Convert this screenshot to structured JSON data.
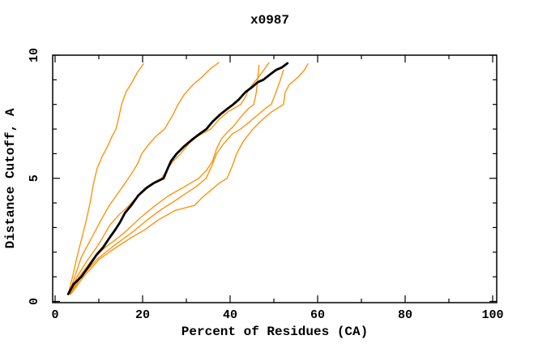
{
  "chart_data": {
    "type": "line",
    "title": "x0987",
    "xlabel": "Percent of Residues (CA)",
    "ylabel": "Distance Cutoff, A",
    "xlim": [
      0,
      100
    ],
    "ylim": [
      0,
      10
    ],
    "x_major_ticks": [
      0,
      20,
      40,
      60,
      80,
      100
    ],
    "x_minor_ticks": [
      10,
      30,
      50,
      70,
      90
    ],
    "y_major_ticks": [
      0,
      5,
      10
    ],
    "y_minor_ticks": [
      1,
      2,
      3,
      4,
      6,
      7,
      8,
      9
    ],
    "grid": false,
    "legend_position": "none",
    "colors": {
      "background": "#ffffff",
      "axis": "#000000",
      "prediction_line": "#ff8c00",
      "reference_line": "#000000"
    },
    "series": [
      {
        "name": "prediction-1",
        "color": "#ff8c00",
        "width": 1.3,
        "points": [
          [
            3.0,
            0.3
          ],
          [
            4.0,
            1.0
          ],
          [
            5.0,
            1.8
          ],
          [
            6.0,
            2.5
          ],
          [
            7.0,
            3.2
          ],
          [
            8.0,
            4.0
          ],
          [
            8.8,
            4.8
          ],
          [
            9.6,
            5.4
          ],
          [
            10.8,
            5.9
          ],
          [
            12.0,
            6.3
          ],
          [
            13.0,
            6.7
          ],
          [
            13.9,
            7.0
          ],
          [
            14.6,
            7.5
          ],
          [
            15.2,
            8.0
          ],
          [
            16.2,
            8.5
          ],
          [
            17.6,
            8.9
          ],
          [
            18.8,
            9.3
          ],
          [
            20.2,
            9.65
          ]
        ]
      },
      {
        "name": "prediction-2",
        "color": "#ff8c00",
        "width": 1.3,
        "points": [
          [
            3.2,
            0.3
          ],
          [
            4.5,
            1.0
          ],
          [
            6.0,
            1.8
          ],
          [
            7.5,
            2.3
          ],
          [
            9.0,
            2.8
          ],
          [
            10.5,
            3.3
          ],
          [
            12.4,
            3.9
          ],
          [
            14.0,
            4.3
          ],
          [
            16.0,
            4.8
          ],
          [
            17.5,
            5.2
          ],
          [
            18.9,
            5.6
          ],
          [
            19.8,
            6.0
          ],
          [
            21.5,
            6.4
          ],
          [
            23.0,
            6.7
          ],
          [
            25.0,
            7.0
          ],
          [
            26.0,
            7.3
          ],
          [
            27.0,
            7.6
          ],
          [
            28.1,
            8.0
          ],
          [
            29.5,
            8.4
          ],
          [
            31.5,
            8.8
          ],
          [
            33.5,
            9.1
          ],
          [
            35.5,
            9.45
          ],
          [
            37.4,
            9.7
          ]
        ]
      },
      {
        "name": "prediction-3",
        "color": "#ff8c00",
        "width": 1.3,
        "points": [
          [
            3.4,
            0.3
          ],
          [
            5.0,
            1.0
          ],
          [
            7.5,
            1.7
          ],
          [
            9.5,
            2.2
          ],
          [
            10.9,
            2.6
          ],
          [
            12.5,
            3.1
          ],
          [
            14.5,
            3.5
          ],
          [
            16.9,
            3.9
          ],
          [
            18.5,
            4.2
          ],
          [
            20.5,
            4.5
          ],
          [
            22.3,
            4.8
          ],
          [
            24.3,
            5.0
          ],
          [
            25.8,
            5.4
          ],
          [
            27.0,
            5.7
          ],
          [
            28.7,
            6.0
          ],
          [
            30.5,
            6.4
          ],
          [
            32.5,
            6.7
          ],
          [
            35.6,
            7.0
          ],
          [
            37.5,
            7.4
          ],
          [
            39.5,
            7.7
          ],
          [
            42.4,
            8.0
          ],
          [
            43.5,
            8.3
          ],
          [
            44.2,
            8.6
          ],
          [
            46.0,
            9.0
          ],
          [
            47.5,
            9.35
          ],
          [
            48.9,
            9.7
          ]
        ]
      },
      {
        "name": "prediction-4",
        "color": "#ff8c00",
        "width": 1.3,
        "points": [
          [
            3.4,
            0.3
          ],
          [
            5.5,
            1.0
          ],
          [
            8.5,
            1.7
          ],
          [
            11.5,
            2.2
          ],
          [
            14.5,
            2.6
          ],
          [
            16.5,
            2.9
          ],
          [
            19.5,
            3.4
          ],
          [
            22.9,
            3.9
          ],
          [
            26.0,
            4.3
          ],
          [
            29.0,
            4.6
          ],
          [
            32.8,
            5.0
          ],
          [
            34.5,
            5.3
          ],
          [
            36.0,
            5.7
          ],
          [
            36.9,
            6.2
          ],
          [
            38.0,
            6.6
          ],
          [
            39.5,
            6.9
          ],
          [
            40.7,
            7.1
          ],
          [
            42.5,
            7.5
          ],
          [
            44.0,
            7.8
          ],
          [
            45.4,
            8.0
          ],
          [
            46.0,
            8.5
          ],
          [
            46.3,
            9.0
          ],
          [
            46.6,
            9.6
          ]
        ]
      },
      {
        "name": "prediction-5",
        "color": "#ff8c00",
        "width": 1.3,
        "points": [
          [
            3.5,
            0.3
          ],
          [
            6.0,
            1.0
          ],
          [
            9.5,
            1.7
          ],
          [
            13.0,
            2.2
          ],
          [
            16.0,
            2.6
          ],
          [
            17.6,
            2.8
          ],
          [
            21.0,
            3.3
          ],
          [
            24.0,
            3.7
          ],
          [
            27.5,
            4.1
          ],
          [
            30.0,
            4.4
          ],
          [
            32.5,
            4.7
          ],
          [
            34.5,
            5.0
          ],
          [
            35.8,
            5.5
          ],
          [
            36.9,
            6.0
          ],
          [
            38.5,
            6.4
          ],
          [
            40.5,
            6.8
          ],
          [
            42.4,
            7.0
          ],
          [
            44.5,
            7.3
          ],
          [
            46.5,
            7.6
          ],
          [
            48.5,
            7.9
          ],
          [
            49.4,
            8.0
          ],
          [
            50.5,
            8.5
          ],
          [
            51.5,
            9.0
          ],
          [
            52.2,
            9.4
          ]
        ]
      },
      {
        "name": "prediction-6",
        "color": "#ff8c00",
        "width": 1.3,
        "points": [
          [
            3.6,
            0.3
          ],
          [
            6.5,
            1.0
          ],
          [
            10.0,
            1.7
          ],
          [
            14.0,
            2.2
          ],
          [
            17.5,
            2.6
          ],
          [
            20.4,
            2.9
          ],
          [
            23.5,
            3.3
          ],
          [
            27.5,
            3.7
          ],
          [
            31.9,
            3.9
          ],
          [
            33.5,
            4.2
          ],
          [
            35.5,
            4.5
          ],
          [
            37.5,
            4.8
          ],
          [
            39.3,
            5.0
          ],
          [
            40.5,
            5.5
          ],
          [
            41.5,
            6.0
          ],
          [
            43.0,
            6.5
          ],
          [
            45.2,
            7.0
          ],
          [
            47.5,
            7.4
          ],
          [
            49.5,
            7.7
          ],
          [
            52.2,
            8.0
          ],
          [
            52.6,
            8.5
          ],
          [
            53.5,
            8.8
          ],
          [
            55.5,
            9.1
          ],
          [
            57.0,
            9.4
          ],
          [
            57.8,
            9.65
          ]
        ]
      },
      {
        "name": "reference-model",
        "color": "#000000",
        "width": 2.8,
        "points": [
          [
            3.0,
            0.3
          ],
          [
            4.2,
            0.7
          ],
          [
            6.0,
            1.0
          ],
          [
            7.6,
            1.4
          ],
          [
            9.5,
            1.9
          ],
          [
            11.0,
            2.2
          ],
          [
            12.5,
            2.6
          ],
          [
            13.7,
            2.9
          ],
          [
            14.8,
            3.2
          ],
          [
            16.0,
            3.6
          ],
          [
            17.4,
            3.9
          ],
          [
            19.0,
            4.3
          ],
          [
            20.8,
            4.6
          ],
          [
            22.5,
            4.8
          ],
          [
            24.8,
            5.0
          ],
          [
            25.5,
            5.3
          ],
          [
            26.5,
            5.7
          ],
          [
            27.8,
            6.0
          ],
          [
            29.5,
            6.3
          ],
          [
            31.5,
            6.6
          ],
          [
            33.0,
            6.8
          ],
          [
            34.6,
            7.0
          ],
          [
            36.0,
            7.3
          ],
          [
            37.8,
            7.6
          ],
          [
            39.2,
            7.8
          ],
          [
            40.7,
            8.0
          ],
          [
            42.0,
            8.2
          ],
          [
            43.5,
            8.5
          ],
          [
            45.0,
            8.7
          ],
          [
            46.3,
            8.9
          ],
          [
            47.6,
            9.0
          ],
          [
            49.0,
            9.2
          ],
          [
            50.5,
            9.4
          ],
          [
            51.8,
            9.5
          ],
          [
            53.1,
            9.67
          ]
        ]
      }
    ]
  }
}
